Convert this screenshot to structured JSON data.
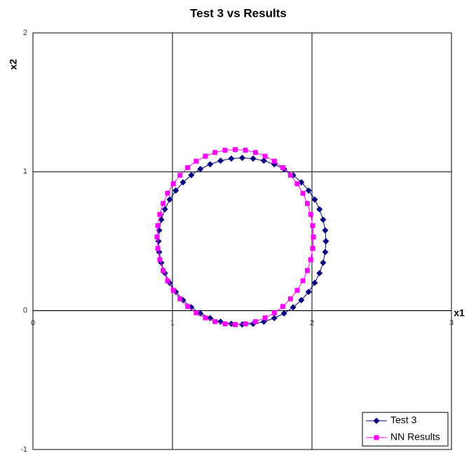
{
  "chart_data": {
    "type": "scatter",
    "title": "Test 3 vs Results",
    "x_label": "x1",
    "y_label": "x2",
    "xlim": [
      0,
      3
    ],
    "ylim": [
      -1,
      2
    ],
    "xticks": [
      0,
      1,
      2,
      3
    ],
    "yticks": [
      -1,
      0,
      1,
      2
    ],
    "grid": true,
    "legend": "lower right",
    "series": [
      {
        "name": "Test 3",
        "color": "#000080",
        "marker": "diamond",
        "x": [
          2.1,
          2.095,
          2.08,
          2.054,
          2.02,
          1.976,
          1.924,
          1.865,
          1.8,
          1.73,
          1.655,
          1.578,
          1.5,
          1.422,
          1.345,
          1.27,
          1.2,
          1.135,
          1.076,
          1.024,
          0.98,
          0.946,
          0.92,
          0.905,
          0.9,
          0.905,
          0.92,
          0.946,
          0.98,
          1.024,
          1.076,
          1.135,
          1.2,
          1.27,
          1.345,
          1.422,
          1.5,
          1.578,
          1.655,
          1.73,
          1.8,
          1.865,
          1.924,
          1.976,
          2.02,
          2.054,
          2.08,
          2.095,
          2.1
        ],
        "values": [
          0.5,
          0.578,
          0.655,
          0.73,
          0.8,
          0.865,
          0.924,
          0.976,
          1.02,
          1.054,
          1.08,
          1.095,
          1.1,
          1.095,
          1.08,
          1.054,
          1.02,
          0.976,
          0.924,
          0.865,
          0.8,
          0.73,
          0.655,
          0.578,
          0.5,
          0.422,
          0.345,
          0.27,
          0.2,
          0.135,
          0.076,
          0.024,
          -0.02,
          -0.054,
          -0.08,
          -0.095,
          -0.1,
          -0.095,
          -0.08,
          -0.054,
          -0.02,
          0.024,
          0.076,
          0.135,
          0.2,
          0.27,
          0.345,
          0.422,
          0.5
        ]
      },
      {
        "name": "NN Results",
        "color": "#FF00FF",
        "marker": "square",
        "x": [
          2.01,
          2.005,
          1.991,
          1.967,
          1.935,
          1.894,
          1.846,
          1.791,
          1.73,
          1.664,
          1.595,
          1.523,
          1.45,
          1.377,
          1.305,
          1.236,
          1.17,
          1.109,
          1.054,
          1.006,
          0.965,
          0.933,
          0.909,
          0.895,
          0.89,
          0.895,
          0.909,
          0.933,
          0.965,
          1.006,
          1.054,
          1.109,
          1.17,
          1.236,
          1.305,
          1.377,
          1.45,
          1.523,
          1.595,
          1.664,
          1.73,
          1.791,
          1.846,
          1.894,
          1.935,
          1.967,
          1.991,
          2.005,
          2.01
        ],
        "values": [
          0.53,
          0.612,
          0.693,
          0.771,
          0.845,
          0.914,
          0.975,
          1.03,
          1.076,
          1.112,
          1.139,
          1.155,
          1.16,
          1.155,
          1.139,
          1.112,
          1.076,
          1.03,
          0.975,
          0.914,
          0.845,
          0.771,
          0.693,
          0.612,
          0.53,
          0.448,
          0.367,
          0.289,
          0.215,
          0.146,
          0.085,
          0.03,
          -0.016,
          -0.052,
          -0.079,
          -0.095,
          -0.1,
          -0.095,
          -0.079,
          -0.052,
          -0.016,
          0.03,
          0.085,
          0.146,
          0.215,
          0.289,
          0.367,
          0.448,
          0.53
        ]
      }
    ]
  }
}
